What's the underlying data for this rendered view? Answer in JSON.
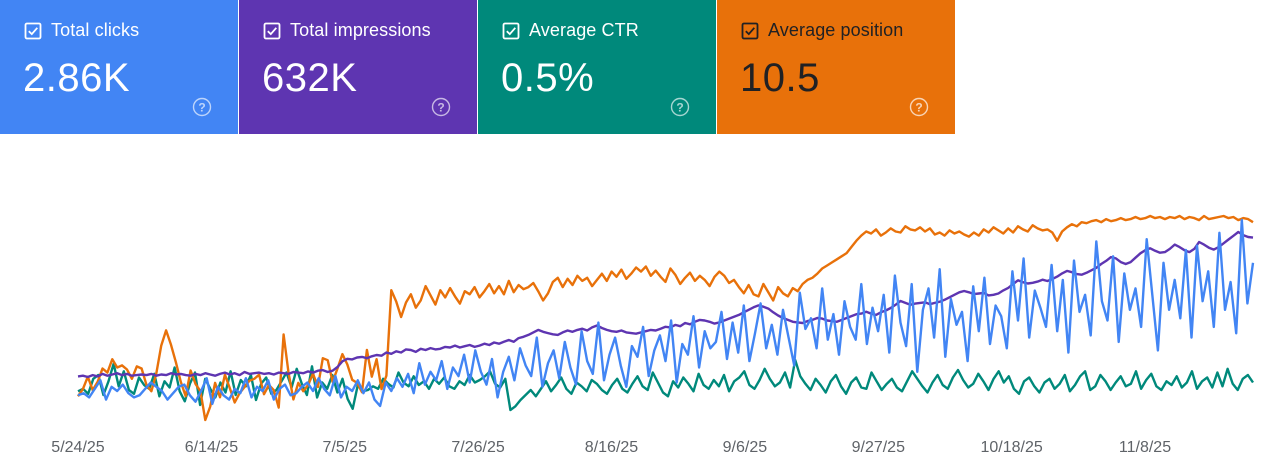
{
  "metrics": [
    {
      "label": "Total clicks",
      "value": "2.86K",
      "color": "#4285f4",
      "text_color": "#ffffff"
    },
    {
      "label": "Total impressions",
      "value": "632K",
      "color": "#5e35b1",
      "text_color": "#ffffff"
    },
    {
      "label": "Average CTR",
      "value": "0.5%",
      "color": "#00897b",
      "text_color": "#ffffff"
    },
    {
      "label": "Average position",
      "value": "10.5",
      "color": "#e8710a",
      "text_color": "#202124"
    }
  ],
  "icons": {
    "checkbox": "checkbox-checked-icon",
    "help": "help-circle-icon"
  },
  "chart_data": {
    "type": "line",
    "x_start": "2025-05-24",
    "x_end": "2025-11-25",
    "x_ticks": [
      "5/24/25",
      "6/14/25",
      "7/5/25",
      "7/26/25",
      "8/16/25",
      "9/6/25",
      "9/27/25",
      "10/18/25",
      "11/8/25"
    ],
    "y_axes_visible": false,
    "grid": false,
    "series": [
      {
        "name": "Total clicks",
        "color": "#4285f4",
        "values": [
          8,
          9,
          7,
          11,
          15,
          6,
          12,
          10,
          13,
          9,
          7,
          8,
          11,
          14,
          12,
          10,
          6,
          9,
          12,
          13,
          8,
          5,
          10,
          16,
          4,
          12,
          8,
          6,
          11,
          9,
          16,
          7,
          12,
          10,
          15,
          6,
          11,
          13,
          8,
          9,
          12,
          14,
          10,
          16,
          11,
          8,
          17,
          7,
          12,
          10,
          15,
          9,
          14,
          6,
          3,
          14,
          10,
          16,
          12,
          18,
          9,
          23,
          13,
          19,
          15,
          24,
          11,
          21,
          17,
          27,
          14,
          29,
          19,
          13,
          25,
          7,
          19,
          26,
          15,
          30,
          22,
          17,
          35,
          12,
          23,
          29,
          16,
          33,
          21,
          13,
          38,
          24,
          18,
          42,
          15,
          27,
          35,
          22,
          12,
          31,
          26,
          40,
          17,
          29,
          36,
          24,
          43,
          14,
          32,
          27,
          45,
          21,
          38,
          30,
          33,
          47,
          25,
          42,
          28,
          50,
          24,
          37,
          51,
          30,
          41,
          27,
          48,
          35,
          22,
          56,
          39,
          44,
          30,
          58,
          34,
          46,
          27,
          52,
          40,
          34,
          60,
          32,
          49,
          38,
          55,
          28,
          64,
          42,
          31,
          60,
          19,
          48,
          58,
          35,
          67,
          26,
          53,
          41,
          47,
          24,
          59,
          38,
          63,
          32,
          50,
          45,
          30,
          66,
          43,
          72,
          35,
          57,
          49,
          40,
          69,
          38,
          62,
          28,
          71,
          47,
          55,
          36,
          80,
          52,
          43,
          73,
          33,
          65,
          48,
          58,
          40,
          81,
          55,
          29,
          70,
          48,
          62,
          44,
          76,
          35,
          78,
          52,
          66,
          40,
          84,
          48,
          61,
          37,
          90,
          51,
          70
        ]
      },
      {
        "name": "Total impressions",
        "color": "#5e35b1",
        "values": [
          5200,
          5250,
          5150,
          5300,
          5200,
          5400,
          5250,
          5350,
          5450,
          5300,
          5400,
          5250,
          5300,
          5350,
          5300,
          5400,
          5250,
          5350,
          5300,
          5450,
          5350,
          5400,
          5300,
          5250,
          5400,
          5300,
          5450,
          5350,
          5250,
          5400,
          5500,
          5350,
          5450,
          5300,
          5550,
          5400,
          5450,
          5500,
          5400,
          5450,
          5350,
          5500,
          5450,
          5400,
          5550,
          5500,
          5450,
          5600,
          5500,
          5650,
          5700,
          5550,
          5650,
          5950,
          6400,
          6600,
          6550,
          6700,
          6750,
          6650,
          6800,
          6900,
          6850,
          7100,
          7000,
          7200,
          7100,
          7350,
          7300,
          7150,
          7400,
          7300,
          7450,
          7350,
          7400,
          7550,
          7500,
          7650,
          7500,
          7600,
          7700,
          7550,
          7650,
          7800,
          7700,
          7900,
          7800,
          7950,
          8100,
          7950,
          8250,
          8350,
          8500,
          8700,
          8900,
          8750,
          8650,
          8550,
          8500,
          8700,
          8850,
          8750,
          8900,
          9000,
          8850,
          9100,
          9250,
          9050,
          8900,
          8800,
          8750,
          8850,
          8700,
          8650,
          8600,
          8700,
          8800,
          8900,
          8850,
          9000,
          9150,
          9100,
          9300,
          9200,
          9450,
          9350,
          9550,
          9700,
          9650,
          9550,
          9400,
          9500,
          9650,
          9800,
          9950,
          10100,
          10300,
          10500,
          10700,
          10850,
          10750,
          10600,
          10300,
          10050,
          9850,
          9700,
          9550,
          9500,
          9450,
          9600,
          9700,
          9850,
          9800,
          9650,
          9600,
          9550,
          9700,
          9850,
          10000,
          10150,
          10200,
          10350,
          10200,
          10100,
          10300,
          10450,
          10650,
          10900,
          11200,
          11050,
          10900,
          11000,
          11050,
          11100,
          10950,
          11050,
          11150,
          11300,
          11500,
          11700,
          11900,
          12000,
          11900,
          11750,
          11800,
          11850,
          11650,
          11700,
          11800,
          12050,
          12250,
          12550,
          12850,
          12700,
          12600,
          12650,
          12750,
          12900,
          12800,
          12950,
          13150,
          13400,
          13600,
          13500,
          13350,
          13300,
          13450,
          13650,
          13850,
          14150,
          14400,
          14700,
          14600,
          14300,
          14150,
          14300,
          14650,
          15000,
          15250,
          15400,
          15200,
          15050,
          15100,
          15350,
          15700,
          15500,
          15250,
          15100,
          15350,
          15900,
          15700,
          15450,
          15300,
          15500,
          15800,
          16100,
          16400,
          16700,
          16450,
          16300,
          16250
        ]
      },
      {
        "name": "Average CTR",
        "color": "#00897b",
        "values": [
          0.2,
          0.22,
          0.18,
          0.3,
          0.33,
          0.17,
          0.28,
          0.42,
          0.24,
          0.36,
          0.21,
          0.18,
          0.31,
          0.25,
          0.22,
          0.34,
          0.16,
          0.28,
          0.23,
          0.39,
          0.2,
          0.12,
          0.26,
          0.35,
          0.09,
          0.3,
          0.22,
          0.15,
          0.27,
          0.19,
          0.36,
          0.17,
          0.29,
          0.24,
          0.33,
          0.13,
          0.26,
          0.31,
          0.18,
          0.21,
          0.28,
          0.35,
          0.23,
          0.38,
          0.26,
          0.17,
          0.4,
          0.15,
          0.27,
          0.22,
          0.33,
          0.19,
          0.3,
          0.14,
          0.06,
          0.25,
          0.2,
          0.21,
          0.24,
          0.22,
          0.3,
          0.26,
          0.23,
          0.35,
          0.27,
          0.24,
          0.32,
          0.25,
          0.28,
          0.22,
          0.3,
          0.26,
          0.31,
          0.24,
          0.22,
          0.28,
          0.25,
          0.33,
          0.27,
          0.29,
          0.32,
          0.36,
          0.26,
          0.23,
          0.3,
          0.05,
          0.08,
          0.13,
          0.17,
          0.21,
          0.16,
          0.22,
          0.28,
          0.2,
          0.25,
          0.31,
          0.22,
          0.18,
          0.27,
          0.24,
          0.2,
          0.29,
          0.26,
          0.21,
          0.18,
          0.25,
          0.3,
          0.22,
          0.19,
          0.26,
          0.32,
          0.24,
          0.21,
          0.35,
          0.27,
          0.19,
          0.16,
          0.28,
          0.23,
          0.31,
          0.26,
          0.2,
          0.34,
          0.25,
          0.22,
          0.29,
          0.24,
          0.33,
          0.2,
          0.28,
          0.31,
          0.36,
          0.25,
          0.22,
          0.29,
          0.38,
          0.3,
          0.24,
          0.27,
          0.35,
          0.23,
          0.45,
          0.32,
          0.26,
          0.21,
          0.3,
          0.25,
          0.19,
          0.28,
          0.33,
          0.24,
          0.18,
          0.27,
          0.31,
          0.23,
          0.22,
          0.35,
          0.28,
          0.21,
          0.26,
          0.3,
          0.23,
          0.2,
          0.28,
          0.36,
          0.3,
          0.24,
          0.19,
          0.27,
          0.33,
          0.25,
          0.22,
          0.31,
          0.37,
          0.29,
          0.23,
          0.26,
          0.34,
          0.28,
          0.21,
          0.3,
          0.36,
          0.27,
          0.32,
          0.22,
          0.18,
          0.28,
          0.31,
          0.24,
          0.19,
          0.27,
          0.3,
          0.22,
          0.26,
          0.33,
          0.2,
          0.25,
          0.32,
          0.36,
          0.21,
          0.24,
          0.33,
          0.28,
          0.21,
          0.27,
          0.32,
          0.24,
          0.26,
          0.36,
          0.22,
          0.29,
          0.34,
          0.24,
          0.21,
          0.28,
          0.25,
          0.32,
          0.23,
          0.27,
          0.36,
          0.22,
          0.28,
          0.31,
          0.23,
          0.35,
          0.24,
          0.38,
          0.26,
          0.21,
          0.3,
          0.33,
          0.27
        ]
      },
      {
        "name": "Average position",
        "color": "#e8710a",
        "values": [
          19.5,
          18.8,
          17.6,
          18.9,
          18.1,
          16.8,
          17.2,
          15.9,
          16.7,
          16.5,
          16.9,
          17.8,
          16.6,
          16.8,
          18.4,
          19.0,
          17.3,
          14.6,
          13.1,
          14.5,
          16.2,
          18.1,
          19.5,
          17.0,
          18.3,
          19.0,
          21.8,
          20.5,
          18.2,
          19.6,
          17.4,
          18.7,
          20.1,
          19.2,
          18.6,
          18.0,
          17.8,
          17.4,
          19.3,
          18.4,
          18.9,
          20.6,
          13.5,
          17.2,
          19.8,
          18.2,
          19.0,
          18.4,
          17.3,
          18.6,
          15.8,
          16.0,
          18.1,
          16.8,
          15.4,
          16.4,
          17.9,
          18.2,
          19.1,
          15.0,
          17.6,
          15.9,
          18.8,
          17.5,
          9.2,
          10.3,
          11.8,
          10.4,
          9.6,
          10.9,
          10.2,
          8.8,
          9.7,
          10.6,
          9.2,
          9.9,
          9.0,
          9.8,
          10.5,
          9.3,
          9.6,
          8.9,
          9.9,
          9.3,
          8.6,
          9.5,
          8.8,
          9.6,
          8.3,
          9.4,
          8.7,
          9.1,
          8.9,
          8.5,
          9.3,
          10.2,
          9.5,
          8.4,
          8.0,
          8.9,
          8.1,
          8.7,
          7.8,
          8.3,
          8.0,
          8.8,
          8.2,
          7.6,
          8.3,
          7.4,
          7.9,
          7.2,
          8.1,
          7.6,
          7.0,
          7.4,
          6.9,
          7.8,
          7.3,
          7.9,
          8.4,
          7.1,
          7.7,
          8.6,
          8.0,
          7.5,
          8.3,
          7.8,
          8.2,
          8.8,
          7.9,
          7.4,
          7.8,
          8.5,
          8.2,
          8.9,
          9.5,
          8.7,
          9.6,
          9.8,
          8.6,
          9.4,
          10.2,
          8.9,
          9.5,
          9.8,
          9.0,
          9.3,
          8.6,
          8.2,
          8.0,
          7.6,
          7.1,
          6.8,
          6.5,
          6.2,
          5.9,
          5.6,
          5.0,
          4.4,
          3.9,
          3.5,
          3.7,
          3.3,
          3.9,
          3.6,
          3.2,
          3.5,
          3.6,
          3.0,
          3.3,
          3.4,
          3.1,
          3.5,
          3.2,
          3.8,
          3.6,
          3.9,
          3.4,
          3.7,
          3.5,
          3.8,
          4.0,
          3.6,
          3.9,
          3.3,
          3.6,
          3.1,
          3.4,
          3.7,
          3.2,
          3.6,
          3.0,
          3.3,
          3.5,
          2.9,
          3.2,
          3.4,
          3.3,
          3.6,
          4.4,
          3.5,
          3.1,
          2.8,
          3.0,
          2.6,
          2.7,
          2.5,
          2.4,
          2.6,
          2.3,
          2.5,
          2.4,
          2.2,
          2.4,
          2.3,
          2.1,
          2.3,
          2.2,
          2.0,
          2.2,
          2.1,
          2.3,
          2.1,
          2.2,
          2.0,
          2.3,
          2.1,
          2.2,
          2.4,
          2.0,
          2.3,
          2.2,
          2.1,
          2.0,
          2.2,
          2.1,
          2.4,
          2.2,
          2.3,
          2.6
        ]
      }
    ]
  }
}
